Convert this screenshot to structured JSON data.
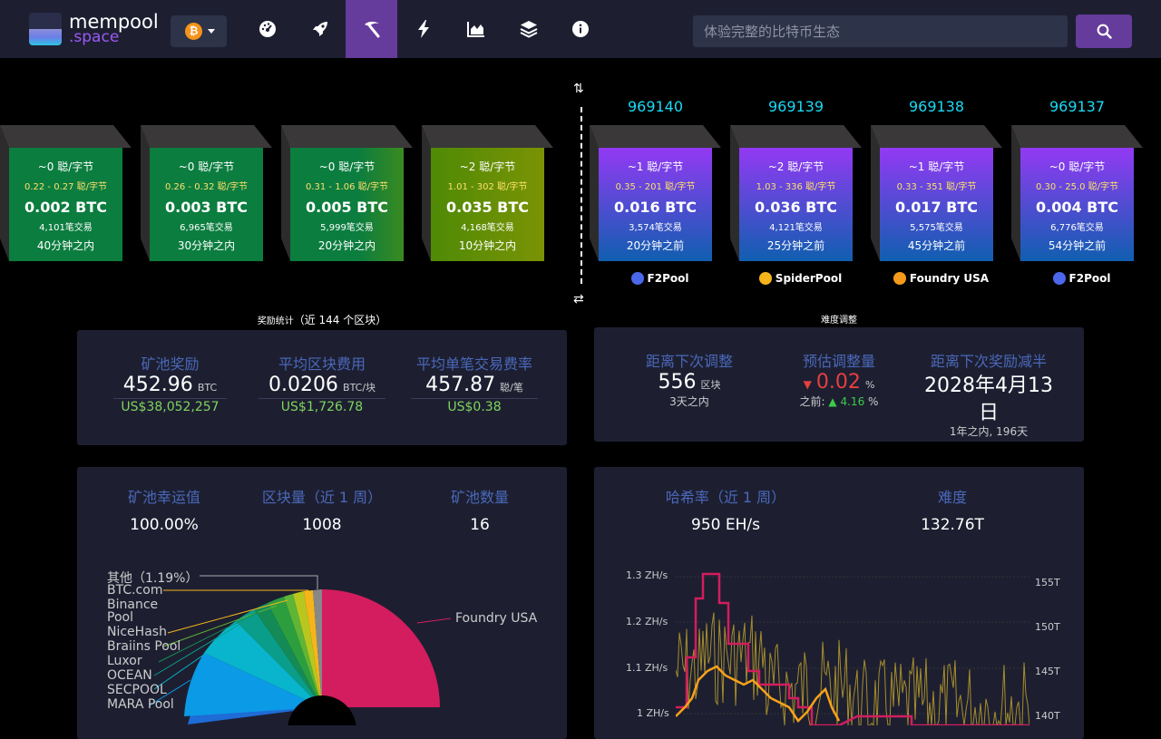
{
  "header": {
    "logo_line1": "mempool",
    "logo_line2": ".space",
    "network_symbol": "₿",
    "search_placeholder": "体验完整的比特币生态",
    "nav_icons": [
      "dashboard-icon",
      "rocket-icon",
      "mining-icon",
      "lightning-icon",
      "chart-area-icon",
      "layers-icon",
      "info-icon"
    ],
    "active_nav": "mining-icon"
  },
  "mempool_blocks": [
    {
      "fee": "~0 聪/字节",
      "range": "0.22 - 0.27 聪/字节",
      "amount": "0.002 BTC",
      "tx": "4,101笔交易",
      "time": "40分钟之内",
      "color": "#0b7d3f"
    },
    {
      "fee": "~0 聪/字节",
      "range": "0.26 - 0.32 聪/字节",
      "amount": "0.003 BTC",
      "tx": "6,965笔交易",
      "time": "30分钟之内",
      "color": "#0b7d3f"
    },
    {
      "fee": "~0 聪/字节",
      "range": "0.31 - 1.06 聪/字节",
      "amount": "0.005 BTC",
      "tx": "5,999笔交易",
      "time": "20分钟之内",
      "color": "#0b7d3f"
    },
    {
      "fee": "~2 聪/字节",
      "range": "1.01 - 302 聪/字节",
      "amount": "0.035 BTC",
      "tx": "4,168笔交易",
      "time": "10分钟之内",
      "color": "#5a8a06"
    }
  ],
  "mined_blocks": [
    {
      "height": "969140",
      "fee": "~1 聪/字节",
      "range": "0.35 - 201 聪/字节",
      "amount": "0.016 BTC",
      "tx": "3,574笔交易",
      "time": "20分钟之前",
      "pool": "F2Pool"
    },
    {
      "height": "969139",
      "fee": "~2 聪/字节",
      "range": "1.03 - 336 聪/字节",
      "amount": "0.036 BTC",
      "tx": "4,121笔交易",
      "time": "25分钟之前",
      "pool": "SpiderPool"
    },
    {
      "height": "969138",
      "fee": "~1 聪/字节",
      "range": "0.33 - 351 聪/字节",
      "amount": "0.017 BTC",
      "tx": "5,575笔交易",
      "time": "45分钟之前",
      "pool": "Foundry USA"
    },
    {
      "height": "969137",
      "fee": "~0 聪/字节",
      "range": "0.30 - 25.0 聪/字节",
      "amount": "0.004 BTC",
      "tx": "6,776笔交易",
      "time": "54分钟之前",
      "pool": "F2Pool"
    }
  ],
  "reward_stats": {
    "title": "奖励统计",
    "title_count": "（近 144 个区块）",
    "reward": {
      "label": "矿池奖励",
      "value": "452.96",
      "unit": "BTC",
      "usd": "US$38,052,257"
    },
    "fee": {
      "label": "平均区块费用",
      "value": "0.0206",
      "unit": "BTC/块",
      "usd": "US$1,726.78"
    },
    "rate": {
      "label": "平均单笔交易费率",
      "value": "457.87",
      "unit": "聪/笔",
      "usd": "US$0.38"
    }
  },
  "difficulty_adj": {
    "title": "难度调整",
    "remaining": {
      "label": "距离下次调整",
      "value": "556",
      "unit": "区块",
      "sub": "3天之内"
    },
    "estimate": {
      "label": "预估调整量",
      "value": "0.02",
      "unit": "%",
      "prev_label": "之前:",
      "prev_value": "4.16",
      "prev_unit": "%"
    },
    "halving": {
      "label": "距离下次奖励减半",
      "value": "2028年4月13日",
      "sub": "1年之内, 196天"
    }
  },
  "pool_stats": {
    "luck": {
      "label": "矿池幸运值",
      "value": "100.00%"
    },
    "blocks": {
      "label": "区块量（近 1 周）",
      "value": "1008"
    },
    "count": {
      "label": "矿池数量",
      "value": "16"
    }
  },
  "pie_labels": [
    "其他（1.19%）",
    "BTC.com",
    "Binance",
    "Pool",
    "NiceHash",
    "Braiins Pool",
    "Luxor",
    "OCEAN",
    "SECPOOL",
    "MARA Pool",
    "Foundry USA"
  ],
  "hashrate": {
    "hash_label": "哈希率（近 1 周）",
    "hash_value": "950 EH/s",
    "diff_label": "难度",
    "diff_value": "132.76T"
  },
  "chart_data": {
    "type": "line",
    "left_axis_ticks": [
      "1.3 ZH/s",
      "1.2 ZH/s",
      "1.1 ZH/s",
      "1 ZH/s"
    ],
    "right_axis_ticks": [
      "155T",
      "150T",
      "145T",
      "140T"
    ]
  },
  "colors": {
    "accent": "#653b9c",
    "panel": "#1d1f31",
    "label_blue": "#4a68b9",
    "mined_top": "#9339f4",
    "mined_bottom": "#105fb0"
  }
}
